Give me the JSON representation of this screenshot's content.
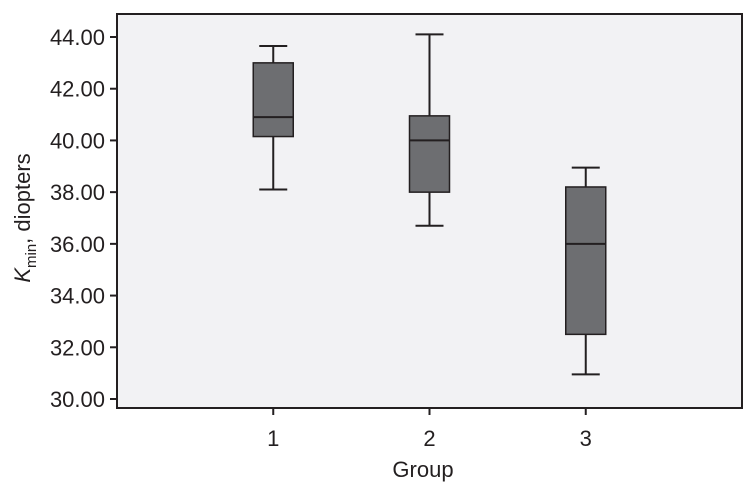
{
  "chart_data": {
    "type": "boxplot",
    "xlabel": "Group",
    "ylabel_main": "K",
    "ylabel_sub": "min",
    "ylabel_rest": ", diopters",
    "ylim": [
      30,
      44
    ],
    "xlim": [
      0,
      4
    ],
    "yticks": [
      "30.00",
      "32.00",
      "34.00",
      "36.00",
      "38.00",
      "40.00",
      "42.00",
      "44.00"
    ],
    "categories": [
      "1",
      "2",
      "3"
    ],
    "boxes": [
      {
        "min": 38.1,
        "q1": 40.15,
        "median": 40.9,
        "q3": 43.0,
        "max": 43.65
      },
      {
        "min": 36.7,
        "q1": 38.0,
        "median": 40.0,
        "q3": 40.95,
        "max": 44.1
      },
      {
        "min": 30.95,
        "q1": 32.5,
        "median": 36.0,
        "q3": 38.2,
        "max": 38.95
      }
    ],
    "grid": false,
    "colors": {
      "plot_bg": "#f2f2f4",
      "box_fill": "#6d6e71",
      "line": "#231f20"
    }
  }
}
